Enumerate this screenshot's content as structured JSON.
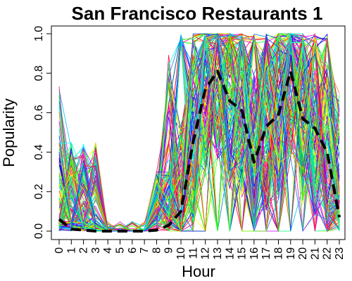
{
  "chart_data": {
    "type": "line",
    "title": "San Francisco Restaurants 1",
    "xlabel": "Hour",
    "ylabel": "Popularity",
    "x": [
      0,
      1,
      2,
      3,
      4,
      5,
      6,
      7,
      8,
      9,
      10,
      11,
      12,
      13,
      14,
      15,
      16,
      17,
      18,
      19,
      20,
      21,
      22,
      23
    ],
    "x_tick_labels": [
      "0",
      "1",
      "2",
      "3",
      "4",
      "5",
      "6",
      "7",
      "8",
      "9",
      "10",
      "11",
      "12",
      "13",
      "14",
      "15",
      "16",
      "17",
      "18",
      "19",
      "20",
      "21",
      "22",
      "23"
    ],
    "xlim": [
      0,
      23
    ],
    "ylim": [
      0,
      1
    ],
    "y_ticks": [
      0.0,
      0.2,
      0.4,
      0.6,
      0.8,
      1.0
    ],
    "y_tick_labels": [
      "0.0",
      "0.2",
      "0.4",
      "0.6",
      "0.8",
      "1.0"
    ],
    "grid": false,
    "legend": "none",
    "mean_series": {
      "style": "dashed",
      "color": "#000000",
      "values": [
        0.06,
        0.01,
        0.005,
        0.0,
        0.0,
        0.0,
        0.0,
        0.0,
        0.005,
        0.03,
        0.1,
        0.45,
        0.72,
        0.81,
        0.66,
        0.61,
        0.35,
        0.53,
        0.59,
        0.81,
        0.57,
        0.52,
        0.4,
        0.07
      ]
    },
    "background_series": {
      "description_count": 160,
      "color_palette": [
        "#ff0000",
        "#ff4000",
        "#ff8000",
        "#ffbf00",
        "#ffff00",
        "#bfff00",
        "#80ff00",
        "#40ff00",
        "#00ff00",
        "#00ff40",
        "#00ff80",
        "#00ffbf",
        "#00ffff",
        "#00bfff",
        "#0080ff",
        "#0040ff",
        "#0000ff",
        "#4000ff",
        "#8000ff",
        "#bf00ff",
        "#ff00ff",
        "#ff00bf",
        "#ff0080",
        "#ff0040"
      ]
    }
  }
}
